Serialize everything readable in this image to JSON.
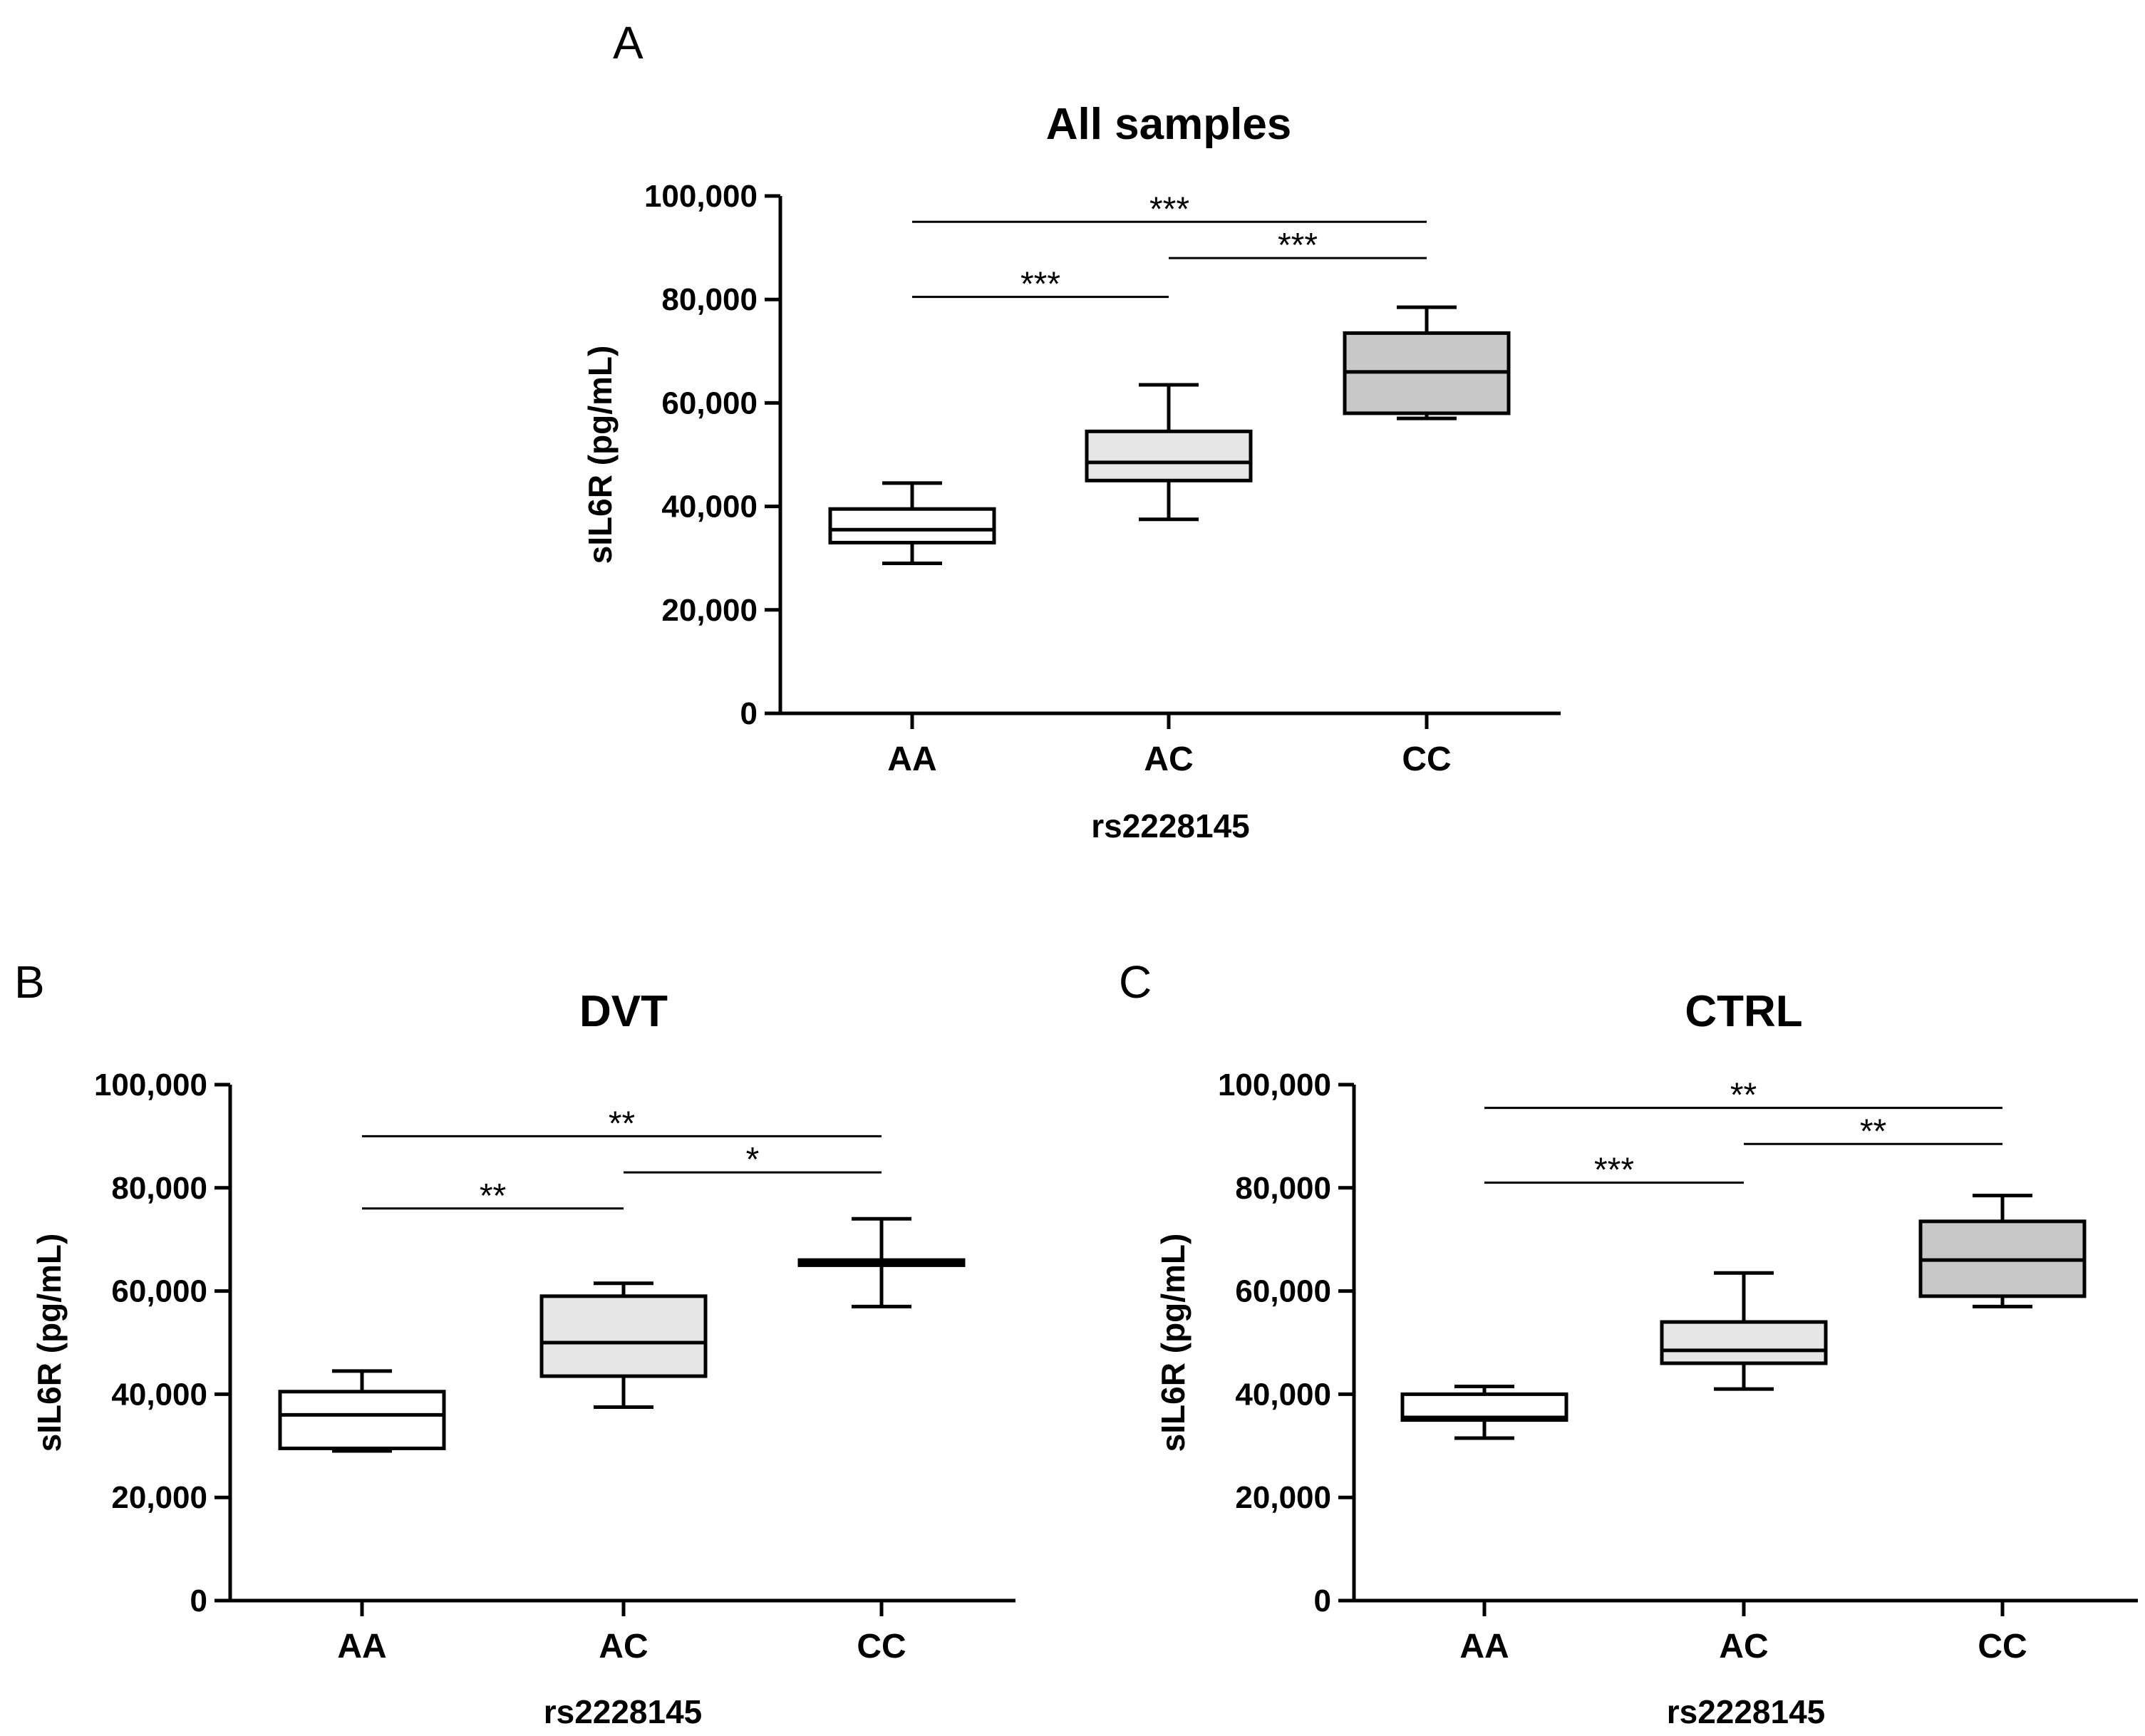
{
  "chart_data": [
    {
      "type": "box",
      "panel_label": "A",
      "title": "All samples",
      "xlabel": "rs2228145",
      "ylabel": "sIL6R (pg/mL)",
      "ylim": [
        0,
        100000
      ],
      "yticks": [
        0,
        20000,
        40000,
        60000,
        80000,
        100000
      ],
      "ytick_labels": [
        "0",
        "20,000",
        "40,000",
        "60,000",
        "80,000",
        "100,000"
      ],
      "categories": [
        "AA",
        "AC",
        "CC"
      ],
      "box_colors": [
        "#ffffff",
        "#e6e6e6",
        "#c8c8c8"
      ],
      "boxes": [
        {
          "min": 29000,
          "q1": 33000,
          "median": 35500,
          "q3": 39500,
          "max": 44500
        },
        {
          "min": 37500,
          "q1": 45000,
          "median": 48500,
          "q3": 54500,
          "max": 63500
        },
        {
          "min": 57000,
          "q1": 58000,
          "median": 66000,
          "q3": 73500,
          "max": 78500
        }
      ],
      "significance": [
        {
          "from": 0,
          "to": 1,
          "label": "***",
          "y": 80500
        },
        {
          "from": 1,
          "to": 2,
          "label": "***",
          "y": 88000
        },
        {
          "from": 0,
          "to": 2,
          "label": "***",
          "y": 95000
        }
      ]
    },
    {
      "type": "box",
      "panel_label": "B",
      "title": "DVT",
      "xlabel": "rs2228145",
      "ylabel": "sIL6R (pg/mL)",
      "ylim": [
        0,
        100000
      ],
      "yticks": [
        0,
        20000,
        40000,
        60000,
        80000,
        100000
      ],
      "ytick_labels": [
        "0",
        "20,000",
        "40,000",
        "60,000",
        "80,000",
        "100,000"
      ],
      "categories": [
        "AA",
        "AC",
        "CC"
      ],
      "box_colors": [
        "#ffffff",
        "#e6e6e6",
        "#c8c8c8"
      ],
      "boxes": [
        {
          "min": 29000,
          "q1": 29500,
          "median": 36000,
          "q3": 40500,
          "max": 44500
        },
        {
          "min": 37500,
          "q1": 43500,
          "median": 50000,
          "q3": 59000,
          "max": 61500
        },
        {
          "min": 57000,
          "q1": 65000,
          "median": 65500,
          "q3": 66000,
          "max": 74000
        }
      ],
      "significance": [
        {
          "from": 0,
          "to": 1,
          "label": "**",
          "y": 76000
        },
        {
          "from": 1,
          "to": 2,
          "label": "*",
          "y": 83000
        },
        {
          "from": 0,
          "to": 2,
          "label": "**",
          "y": 90000
        }
      ]
    },
    {
      "type": "box",
      "panel_label": "C",
      "title": "CTRL",
      "xlabel": "rs2228145",
      "ylabel": "sIL6R (pg/mL)",
      "ylim": [
        0,
        100000
      ],
      "yticks": [
        0,
        20000,
        40000,
        60000,
        80000,
        100000
      ],
      "ytick_labels": [
        "0",
        "20,000",
        "40,000",
        "60,000",
        "80,000",
        "100,000"
      ],
      "categories": [
        "AA",
        "AC",
        "CC"
      ],
      "box_colors": [
        "#ffffff",
        "#e6e6e6",
        "#c8c8c8"
      ],
      "boxes": [
        {
          "min": 31500,
          "q1": 35000,
          "median": 35500,
          "q3": 40000,
          "max": 41500
        },
        {
          "min": 41000,
          "q1": 46000,
          "median": 48500,
          "q3": 54000,
          "max": 63500
        },
        {
          "min": 57000,
          "q1": 59000,
          "median": 66000,
          "q3": 73500,
          "max": 78500
        }
      ],
      "significance": [
        {
          "from": 0,
          "to": 1,
          "label": "***",
          "y": 81000
        },
        {
          "from": 1,
          "to": 2,
          "label": "**",
          "y": 88500
        },
        {
          "from": 0,
          "to": 2,
          "label": "**",
          "y": 95500
        }
      ]
    }
  ]
}
